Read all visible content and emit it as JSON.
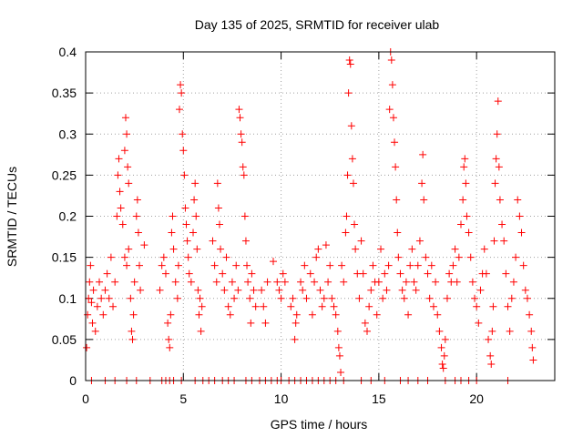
{
  "chart_data": {
    "type": "scatter",
    "title": "Day 135 of 2025, SRMTID for receiver ulab",
    "xlabel": "GPS time / hours",
    "ylabel": "SRMTID / TECUs",
    "xlim": [
      0,
      24
    ],
    "ylim": [
      0,
      0.4
    ],
    "grid": true,
    "marker": "+",
    "colors": {
      "points": "#ff0000",
      "frame": "#000000",
      "grid": "#a0a0a0"
    },
    "xticks": [
      {
        "value": 0,
        "label": "0"
      },
      {
        "value": 5,
        "label": "5"
      },
      {
        "value": 10,
        "label": "10"
      },
      {
        "value": 15,
        "label": "15"
      },
      {
        "value": 20,
        "label": "20"
      }
    ],
    "yticks": [
      {
        "value": 0,
        "label": "0"
      },
      {
        "value": 0.05,
        "label": "0.05"
      },
      {
        "value": 0.1,
        "label": "0.1"
      },
      {
        "value": 0.15,
        "label": "0.15"
      },
      {
        "value": 0.2,
        "label": "0.2"
      },
      {
        "value": 0.25,
        "label": "0.25"
      },
      {
        "value": 0.3,
        "label": "0.3"
      },
      {
        "value": 0.35,
        "label": "0.35"
      },
      {
        "value": 0.4,
        "label": "0.4"
      }
    ],
    "series": [
      {
        "name": "SRMTID",
        "points": [
          [
            0.05,
            0.04
          ],
          [
            0.1,
            0.08
          ],
          [
            0.15,
            0.1
          ],
          [
            0.2,
            0.12
          ],
          [
            0.25,
            0.14
          ],
          [
            0.3,
            0.095
          ],
          [
            0.35,
            0.07
          ],
          [
            0.4,
            0.11
          ],
          [
            0.5,
            0.06
          ],
          [
            0.6,
            0.09
          ],
          [
            0.7,
            0.12
          ],
          [
            0.8,
            0.1
          ],
          [
            0.9,
            0.08
          ],
          [
            1.0,
            0.11
          ],
          [
            1.1,
            0.13
          ],
          [
            1.2,
            0.1
          ],
          [
            1.3,
            0.15
          ],
          [
            1.4,
            0.09
          ],
          [
            1.5,
            0.12
          ],
          [
            1.6,
            0.2
          ],
          [
            1.65,
            0.25
          ],
          [
            1.7,
            0.27
          ],
          [
            1.75,
            0.23
          ],
          [
            1.8,
            0.21
          ],
          [
            1.9,
            0.19
          ],
          [
            2.0,
            0.28
          ],
          [
            2.05,
            0.32
          ],
          [
            2.1,
            0.3
          ],
          [
            2.15,
            0.26
          ],
          [
            2.2,
            0.24
          ],
          [
            2.0,
            0.15
          ],
          [
            2.1,
            0.14
          ],
          [
            2.2,
            0.16
          ],
          [
            2.3,
            0.1
          ],
          [
            2.35,
            0.06
          ],
          [
            2.4,
            0.05
          ],
          [
            2.45,
            0.08
          ],
          [
            2.5,
            0.12
          ],
          [
            2.6,
            0.2
          ],
          [
            2.65,
            0.22
          ],
          [
            2.7,
            0.18
          ],
          [
            2.75,
            0.14
          ],
          [
            2.8,
            0.11
          ],
          [
            3.0,
            0.165
          ],
          [
            3.8,
            0.11
          ],
          [
            3.9,
            0.14
          ],
          [
            4.0,
            0.15
          ],
          [
            4.1,
            0.13
          ],
          [
            4.2,
            0.07
          ],
          [
            4.25,
            0.05
          ],
          [
            4.3,
            0.04
          ],
          [
            4.35,
            0.08
          ],
          [
            4.4,
            0.18
          ],
          [
            4.45,
            0.2
          ],
          [
            4.5,
            0.16
          ],
          [
            4.6,
            0.12
          ],
          [
            4.7,
            0.1
          ],
          [
            4.75,
            0.14
          ],
          [
            4.8,
            0.33
          ],
          [
            4.85,
            0.36
          ],
          [
            4.9,
            0.35
          ],
          [
            4.95,
            0.3
          ],
          [
            5.0,
            0.28
          ],
          [
            5.05,
            0.25
          ],
          [
            5.1,
            0.21
          ],
          [
            5.15,
            0.19
          ],
          [
            5.2,
            0.17
          ],
          [
            5.25,
            0.15
          ],
          [
            5.3,
            0.13
          ],
          [
            5.4,
            0.12
          ],
          [
            5.5,
            0.18
          ],
          [
            5.55,
            0.22
          ],
          [
            5.6,
            0.24
          ],
          [
            5.65,
            0.2
          ],
          [
            5.7,
            0.16
          ],
          [
            5.75,
            0.11
          ],
          [
            5.8,
            0.08
          ],
          [
            5.85,
            0.1
          ],
          [
            5.9,
            0.06
          ],
          [
            5.95,
            0.09
          ],
          [
            6.5,
            0.17
          ],
          [
            6.6,
            0.14
          ],
          [
            6.7,
            0.12
          ],
          [
            6.75,
            0.24
          ],
          [
            6.8,
            0.21
          ],
          [
            6.85,
            0.19
          ],
          [
            6.9,
            0.16
          ],
          [
            7.0,
            0.13
          ],
          [
            7.1,
            0.11
          ],
          [
            7.2,
            0.15
          ],
          [
            7.3,
            0.09
          ],
          [
            7.4,
            0.08
          ],
          [
            7.5,
            0.12
          ],
          [
            7.6,
            0.1
          ],
          [
            7.7,
            0.14
          ],
          [
            7.8,
            0.11
          ],
          [
            7.85,
            0.33
          ],
          [
            7.9,
            0.32
          ],
          [
            7.95,
            0.3
          ],
          [
            8.0,
            0.29
          ],
          [
            8.05,
            0.26
          ],
          [
            8.1,
            0.25
          ],
          [
            8.15,
            0.2
          ],
          [
            8.2,
            0.17
          ],
          [
            8.25,
            0.14
          ],
          [
            8.3,
            0.12
          ],
          [
            8.4,
            0.1
          ],
          [
            8.45,
            0.07
          ],
          [
            8.5,
            0.13
          ],
          [
            8.6,
            0.11
          ],
          [
            8.7,
            0.09
          ],
          [
            9.0,
            0.11
          ],
          [
            9.1,
            0.09
          ],
          [
            9.2,
            0.07
          ],
          [
            9.3,
            0.12
          ],
          [
            9.6,
            0.145
          ],
          [
            9.8,
            0.12
          ],
          [
            9.9,
            0.11
          ],
          [
            10.0,
            0.1
          ],
          [
            10.1,
            0.13
          ],
          [
            10.2,
            0.12
          ],
          [
            10.5,
            0.09
          ],
          [
            10.6,
            0.1
          ],
          [
            10.7,
            0.05
          ],
          [
            10.75,
            0.07
          ],
          [
            10.8,
            0.08
          ],
          [
            11.0,
            0.12
          ],
          [
            11.1,
            0.11
          ],
          [
            11.2,
            0.14
          ],
          [
            11.3,
            0.1
          ],
          [
            11.5,
            0.13
          ],
          [
            11.6,
            0.08
          ],
          [
            11.7,
            0.12
          ],
          [
            11.8,
            0.15
          ],
          [
            11.9,
            0.16
          ],
          [
            12.0,
            0.11
          ],
          [
            12.1,
            0.09
          ],
          [
            12.2,
            0.1
          ],
          [
            12.3,
            0.165
          ],
          [
            12.4,
            0.12
          ],
          [
            12.5,
            0.14
          ],
          [
            12.6,
            0.1
          ],
          [
            12.7,
            0.09
          ],
          [
            12.8,
            0.08
          ],
          [
            12.9,
            0.06
          ],
          [
            12.95,
            0.04
          ],
          [
            13.0,
            0.03
          ],
          [
            13.05,
            0.01
          ],
          [
            13.1,
            0.14
          ],
          [
            13.2,
            0.12
          ],
          [
            13.3,
            0.18
          ],
          [
            13.35,
            0.2
          ],
          [
            13.4,
            0.25
          ],
          [
            13.45,
            0.35
          ],
          [
            13.5,
            0.39
          ],
          [
            13.55,
            0.385
          ],
          [
            13.6,
            0.31
          ],
          [
            13.65,
            0.27
          ],
          [
            13.7,
            0.24
          ],
          [
            13.75,
            0.19
          ],
          [
            13.8,
            0.16
          ],
          [
            13.9,
            0.13
          ],
          [
            14.0,
            0.1
          ],
          [
            14.1,
            0.17
          ],
          [
            14.2,
            0.13
          ],
          [
            14.3,
            0.07
          ],
          [
            14.4,
            0.06
          ],
          [
            14.5,
            0.09
          ],
          [
            14.6,
            0.11
          ],
          [
            14.7,
            0.14
          ],
          [
            14.8,
            0.12
          ],
          [
            14.9,
            0.08
          ],
          [
            15.0,
            0.12
          ],
          [
            15.1,
            0.16
          ],
          [
            15.2,
            0.1
          ],
          [
            15.3,
            0.13
          ],
          [
            15.4,
            0.11
          ],
          [
            15.5,
            0.14
          ],
          [
            15.55,
            0.33
          ],
          [
            15.6,
            0.4
          ],
          [
            15.65,
            0.39
          ],
          [
            15.7,
            0.36
          ],
          [
            15.75,
            0.32
          ],
          [
            15.8,
            0.29
          ],
          [
            15.85,
            0.26
          ],
          [
            15.9,
            0.22
          ],
          [
            15.95,
            0.18
          ],
          [
            16.0,
            0.15
          ],
          [
            16.1,
            0.13
          ],
          [
            16.2,
            0.11
          ],
          [
            16.3,
            0.1
          ],
          [
            16.4,
            0.12
          ],
          [
            16.5,
            0.08
          ],
          [
            16.6,
            0.14
          ],
          [
            16.7,
            0.16
          ],
          [
            16.8,
            0.12
          ],
          [
            16.9,
            0.11
          ],
          [
            17.0,
            0.14
          ],
          [
            17.1,
            0.17
          ],
          [
            17.2,
            0.24
          ],
          [
            17.25,
            0.275
          ],
          [
            17.3,
            0.22
          ],
          [
            17.4,
            0.15
          ],
          [
            17.5,
            0.13
          ],
          [
            17.6,
            0.1
          ],
          [
            17.7,
            0.14
          ],
          [
            17.8,
            0.09
          ],
          [
            17.9,
            0.12
          ],
          [
            18.0,
            0.08
          ],
          [
            18.1,
            0.06
          ],
          [
            18.2,
            0.04
          ],
          [
            18.25,
            0.02
          ],
          [
            18.3,
            0.015
          ],
          [
            18.35,
            0.03
          ],
          [
            18.4,
            0.05
          ],
          [
            18.5,
            0.1
          ],
          [
            18.6,
            0.13
          ],
          [
            18.7,
            0.12
          ],
          [
            18.8,
            0.14
          ],
          [
            18.9,
            0.16
          ],
          [
            19.0,
            0.12
          ],
          [
            19.1,
            0.15
          ],
          [
            19.2,
            0.19
          ],
          [
            19.3,
            0.22
          ],
          [
            19.35,
            0.26
          ],
          [
            19.4,
            0.27
          ],
          [
            19.45,
            0.24
          ],
          [
            19.5,
            0.2
          ],
          [
            19.6,
            0.18
          ],
          [
            19.7,
            0.15
          ],
          [
            19.8,
            0.12
          ],
          [
            19.9,
            0.1
          ],
          [
            20.0,
            0.09
          ],
          [
            20.1,
            0.07
          ],
          [
            20.2,
            0.11
          ],
          [
            20.3,
            0.13
          ],
          [
            20.4,
            0.16
          ],
          [
            20.5,
            0.13
          ],
          [
            20.6,
            0.05
          ],
          [
            20.7,
            0.03
          ],
          [
            20.75,
            0.02
          ],
          [
            20.8,
            0.06
          ],
          [
            20.85,
            0.09
          ],
          [
            20.9,
            0.17
          ],
          [
            20.95,
            0.24
          ],
          [
            21.0,
            0.27
          ],
          [
            21.05,
            0.3
          ],
          [
            21.1,
            0.34
          ],
          [
            21.15,
            0.26
          ],
          [
            21.2,
            0.22
          ],
          [
            21.3,
            0.19
          ],
          [
            21.4,
            0.17
          ],
          [
            21.5,
            0.13
          ],
          [
            21.6,
            0.09
          ],
          [
            21.7,
            0.06
          ],
          [
            21.8,
            0.1
          ],
          [
            21.9,
            0.12
          ],
          [
            22.0,
            0.15
          ],
          [
            22.1,
            0.22
          ],
          [
            22.2,
            0.2
          ],
          [
            22.3,
            0.18
          ],
          [
            22.4,
            0.14
          ],
          [
            22.5,
            0.11
          ],
          [
            22.6,
            0.1
          ],
          [
            22.7,
            0.08
          ],
          [
            22.8,
            0.06
          ],
          [
            22.85,
            0.04
          ],
          [
            22.9,
            0.025
          ]
        ],
        "zero_points": [
          0.3,
          1.0,
          1.5,
          2.1,
          2.6,
          3.3,
          3.9,
          4.1,
          4.3,
          4.5,
          4.9,
          5.6,
          6.0,
          6.3,
          6.6,
          7.0,
          7.3,
          7.6,
          8.2,
          8.5,
          8.9,
          9.2,
          9.5,
          9.8,
          10.0,
          10.4,
          10.7,
          11.0,
          11.3,
          11.6,
          11.9,
          12.2,
          12.5,
          12.8,
          13.2,
          14.1,
          14.6,
          15.3,
          16.1,
          16.5,
          17.0,
          17.5,
          18.4,
          18.9,
          19.2,
          19.6,
          20.0,
          21.6
        ]
      }
    ]
  }
}
